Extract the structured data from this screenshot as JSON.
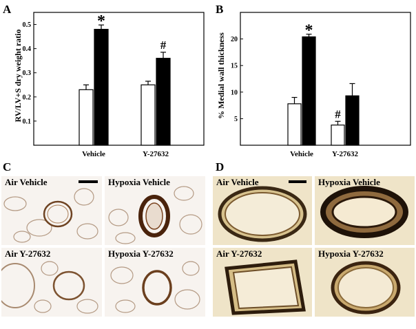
{
  "panels": {
    "A": {
      "letter": "A"
    },
    "B": {
      "letter": "B"
    },
    "C": {
      "letter": "C"
    },
    "D": {
      "letter": "D"
    }
  },
  "chart_data": [
    {
      "type": "bar",
      "panel": "A",
      "ylabel": "RV/LV+S dry weight ratio",
      "xlabel": "",
      "categories": [
        "Vehicle",
        "Y-27632"
      ],
      "ylim": [
        0,
        0.55
      ],
      "yticks": [
        "0.1",
        "0.2",
        "0.3",
        "0.4",
        "0.5"
      ],
      "ytick_values": [
        0.1,
        0.2,
        0.3,
        0.4,
        0.5
      ],
      "series": [
        {
          "fill": "#ffffff",
          "values": [
            0.23,
            0.25
          ],
          "errors": [
            0.02,
            0.015
          ]
        },
        {
          "fill": "#000000",
          "values": [
            0.48,
            0.36
          ],
          "errors": [
            0.018,
            0.025
          ]
        }
      ],
      "annotations": [
        {
          "text": "*",
          "category": 0,
          "series": 1
        },
        {
          "text": "#",
          "category": 1,
          "series": 1
        }
      ],
      "grid": false
    },
    {
      "type": "bar",
      "panel": "B",
      "ylabel": "% Medial wall thickness",
      "xlabel": "",
      "categories": [
        "Vehicle",
        "Y-27632"
      ],
      "ylim": [
        0,
        25
      ],
      "yticks": [
        "5",
        "10",
        "15",
        "20"
      ],
      "ytick_values": [
        5,
        10,
        15,
        20
      ],
      "series": [
        {
          "fill": "#ffffff",
          "values": [
            7.8,
            3.8
          ],
          "errors": [
            1.2,
            0.7
          ]
        },
        {
          "fill": "#000000",
          "values": [
            20.4,
            9.3
          ],
          "errors": [
            0.5,
            2.3
          ]
        }
      ],
      "annotations": [
        {
          "text": "*",
          "category": 0,
          "series": 1
        },
        {
          "text": "#",
          "category": 1,
          "series": 0
        }
      ],
      "grid": false
    }
  ],
  "micrographs": {
    "C": [
      {
        "label": "Air Vehicle"
      },
      {
        "label": "Hypoxia Vehicle"
      },
      {
        "label": "Air Y-27632"
      },
      {
        "label": "Hypoxia Y-27632"
      }
    ],
    "D": [
      {
        "label": "Air Vehicle"
      },
      {
        "label": "Hypoxia Vehicle"
      },
      {
        "label": "Air Y-27632"
      },
      {
        "label": "Hypoxia Y-27632"
      }
    ]
  },
  "colors": {
    "stain_c_tissue": "#c9b8a6",
    "stain_c_vessel": "#5a2e12",
    "stain_d_tissue": "#d8c08a",
    "stain_d_vessel": "#1e1208"
  }
}
